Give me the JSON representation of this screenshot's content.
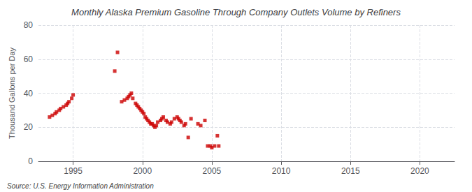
{
  "chart_data": {
    "type": "scatter",
    "title": "Monthly Alaska Premium Gasoline Through Company Outlets Volume by Refiners",
    "ylabel": "Thousand Gallons per Day",
    "annotations": [
      "Source: U.S. Energy Information Administration"
    ],
    "color": "#cc0000",
    "marker": "square",
    "grid": true,
    "xlim": [
      1992.5,
      2022.5
    ],
    "ylim": [
      0,
      80
    ],
    "xticks": [
      1995,
      2000,
      2005,
      2010,
      2015,
      2020
    ],
    "yticks": [
      0,
      20,
      40,
      60,
      80
    ],
    "x": [
      1993.3,
      1993.5,
      1993.7,
      1993.8,
      1994.0,
      1994.1,
      1994.3,
      1994.5,
      1994.6,
      1994.7,
      1994.9,
      1995.0,
      1998.0,
      1998.2,
      1998.5,
      1998.7,
      1998.9,
      1999.0,
      1999.1,
      1999.2,
      1999.3,
      1999.5,
      1999.6,
      1999.7,
      1999.8,
      1999.9,
      2000.0,
      2000.1,
      2000.2,
      2000.3,
      2000.4,
      2000.5,
      2000.6,
      2000.7,
      2000.8,
      2000.9,
      2001.0,
      2001.1,
      2001.3,
      2001.4,
      2001.5,
      2001.7,
      2001.8,
      2002.0,
      2002.1,
      2002.3,
      2002.5,
      2002.6,
      2002.7,
      2002.8,
      2003.0,
      2003.1,
      2003.3,
      2003.5,
      2004.0,
      2004.2,
      2004.5,
      2004.7,
      2004.9,
      2005.0,
      2005.2,
      2005.4,
      2005.5
    ],
    "values": [
      26,
      27,
      28,
      29,
      30,
      31,
      32,
      33,
      34,
      35,
      37,
      39,
      53,
      64,
      35,
      36,
      37,
      38,
      39,
      40,
      37,
      34,
      33,
      32,
      31,
      30,
      29,
      28,
      26,
      25,
      24,
      23,
      22,
      22,
      21,
      20,
      21,
      23,
      24,
      25,
      26,
      24,
      23,
      22,
      23,
      25,
      26,
      25,
      24,
      23,
      21,
      22,
      14,
      25,
      22,
      21,
      24,
      9,
      9,
      8,
      9,
      15,
      9
    ]
  }
}
